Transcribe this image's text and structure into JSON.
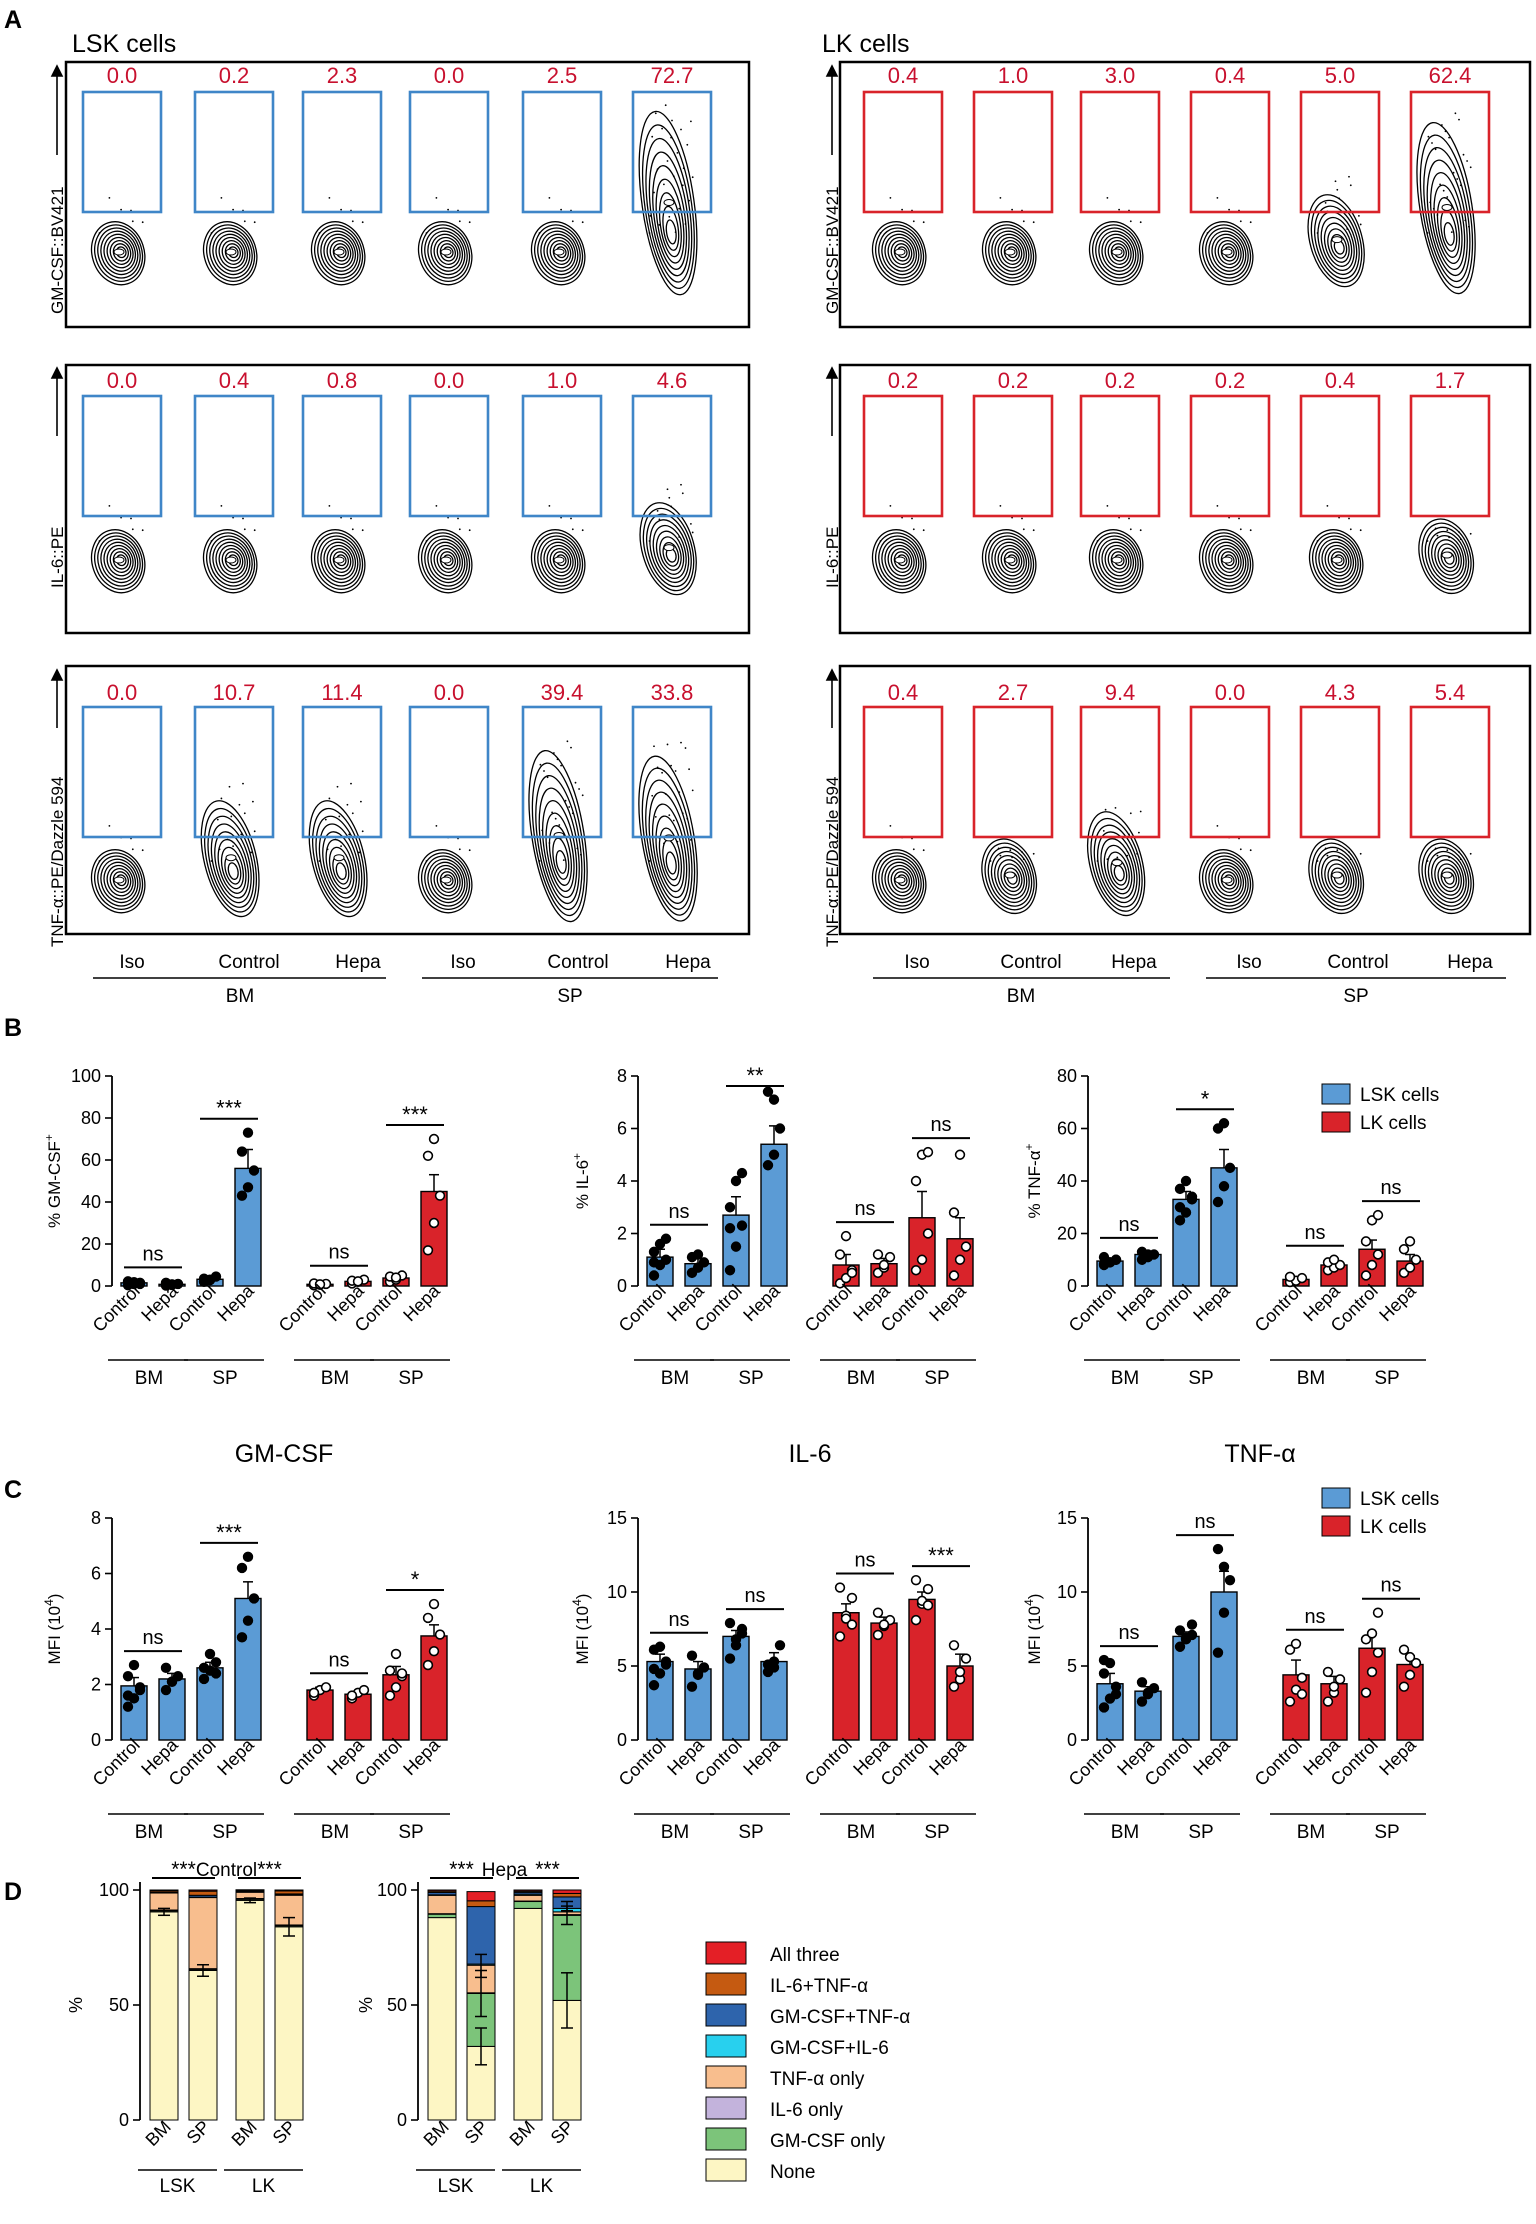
{
  "colors": {
    "lsk": "#5b9bd5",
    "lk": "#d9232a",
    "gate_lsk": "#3f86c8",
    "gate_lk": "#d9232a",
    "freq": "#c8102e"
  },
  "panel_letters": [
    "A",
    "B",
    "C",
    "D"
  ],
  "panelA": {
    "lsk_title": "LSK cells",
    "lk_title": "LK cells",
    "row_axis_labels": [
      "GM-CSF::BV421",
      "IL-6::PE",
      "TNF-α::PE/Dazzle 594"
    ],
    "column_labels": [
      "Iso",
      "Control",
      "Hepa",
      "Iso",
      "Control",
      "Hepa"
    ],
    "group_labels": [
      "BM",
      "SP"
    ],
    "lsk_gate_values": [
      [
        "0.0",
        "0.2",
        "2.3",
        "0.0",
        "2.5",
        "72.7"
      ],
      [
        "0.0",
        "0.4",
        "0.8",
        "0.0",
        "1.0",
        "4.6"
      ],
      [
        "0.0",
        "10.7",
        "11.4",
        "0.0",
        "39.4",
        "33.8"
      ]
    ],
    "lk_gate_values": [
      [
        "0.4",
        "1.0",
        "3.0",
        "0.4",
        "5.0",
        "62.4"
      ],
      [
        "0.2",
        "0.2",
        "0.2",
        "0.2",
        "0.4",
        "1.7"
      ],
      [
        "0.4",
        "2.7",
        "9.4",
        "0.0",
        "4.3",
        "5.4"
      ]
    ]
  },
  "legend": {
    "lsk": "LSK cells",
    "lk": "LK cells"
  },
  "chart_data": [
    {
      "id": "B1",
      "type": "bar",
      "ylabel": "% GM-CSF",
      "ylabel_sup": "+",
      "ylim": [
        0,
        100
      ],
      "yticks": [
        0,
        20,
        40,
        60,
        80,
        100
      ],
      "categories": [
        "Control",
        "Hepa",
        "Control",
        "Hepa",
        "Control",
        "Hepa",
        "Control",
        "Hepa"
      ],
      "cell_types": [
        "LSK",
        "LSK",
        "LSK",
        "LSK",
        "LK",
        "LK",
        "LK",
        "LK"
      ],
      "values": [
        1.5,
        0.8,
        3.2,
        56,
        0.8,
        2.2,
        3.8,
        45
      ],
      "errors": [
        0.5,
        0.4,
        0.8,
        9,
        0.4,
        0.6,
        1,
        8
      ],
      "points": [
        [
          0.4,
          1,
          1.5,
          2.2,
          1.8,
          1
        ],
        [
          0.2,
          0.5,
          1,
          1.5,
          0.8
        ],
        [
          2,
          3,
          4.5,
          3.5,
          2.8
        ],
        [
          43,
          47,
          55,
          64,
          73
        ],
        [
          0.3,
          0.6,
          1,
          1.2,
          0.8
        ],
        [
          1.2,
          2,
          3,
          2.5,
          2.2
        ],
        [
          2,
          3,
          5,
          4.5,
          4
        ],
        [
          17,
          30,
          43,
          62,
          70
        ]
      ],
      "groups": [
        "BM",
        "SP",
        "BM",
        "SP"
      ],
      "comparisons": [
        [
          "ns",
          0,
          1
        ],
        [
          "***",
          2,
          3
        ],
        [
          "ns",
          4,
          5
        ],
        [
          "***",
          6,
          7
        ]
      ]
    },
    {
      "id": "B2",
      "type": "bar",
      "ylabel": "% IL-6",
      "ylabel_sup": "+",
      "ylim": [
        0,
        8
      ],
      "yticks": [
        0,
        2,
        4,
        6,
        8
      ],
      "categories": [
        "Control",
        "Hepa",
        "Control",
        "Hepa",
        "Control",
        "Hepa",
        "Control",
        "Hepa"
      ],
      "cell_types": [
        "LSK",
        "LSK",
        "LSK",
        "LSK",
        "LK",
        "LK",
        "LK",
        "LK"
      ],
      "values": [
        1.1,
        0.85,
        2.7,
        5.4,
        0.8,
        0.85,
        2.6,
        1.8
      ],
      "errors": [
        0.3,
        0.2,
        0.7,
        0.7,
        0.4,
        0.2,
        1.0,
        0.8
      ],
      "points": [
        [
          0.4,
          0.8,
          1,
          1.3,
          1.6,
          1.8,
          0.9
        ],
        [
          0.5,
          0.7,
          0.9,
          1.1,
          1.2
        ],
        [
          0.6,
          1.5,
          2.3,
          3,
          4,
          4.3,
          2.2
        ],
        [
          4.6,
          5,
          6,
          7.4,
          7.1
        ],
        [
          0.1,
          0.3,
          0.6,
          1.2,
          1.9,
          0.5
        ],
        [
          0.5,
          0.7,
          1.1,
          1.2,
          0.8
        ],
        [
          0.6,
          1,
          2,
          4,
          5,
          5.1
        ],
        [
          0.4,
          1,
          1.5,
          2.8,
          5
        ]
      ],
      "groups": [
        "BM",
        "SP",
        "BM",
        "SP"
      ],
      "comparisons": [
        [
          "ns",
          0,
          1
        ],
        [
          "**",
          2,
          3
        ],
        [
          "ns",
          4,
          5
        ],
        [
          "ns",
          6,
          7
        ]
      ]
    },
    {
      "id": "B3",
      "type": "bar",
      "ylabel": "% TNF-α",
      "ylabel_sup": "+",
      "ylim": [
        0,
        80
      ],
      "yticks": [
        0,
        20,
        40,
        60,
        80
      ],
      "categories": [
        "Control",
        "Hepa",
        "Control",
        "Hepa",
        "Control",
        "Hepa",
        "Control",
        "Hepa"
      ],
      "cell_types": [
        "LSK",
        "LSK",
        "LSK",
        "LSK",
        "LK",
        "LK",
        "LK",
        "LK"
      ],
      "values": [
        9.5,
        12,
        33,
        45,
        2.5,
        8,
        14,
        9.5
      ],
      "errors": [
        1,
        0.8,
        3,
        7,
        0.7,
        1.2,
        3.5,
        2.5
      ],
      "points": [
        [
          8,
          9,
          10,
          11,
          9,
          10,
          8.5
        ],
        [
          10,
          11,
          12,
          13,
          12
        ],
        [
          25,
          28,
          33,
          37,
          40,
          34,
          30
        ],
        [
          32,
          38,
          45,
          60,
          62
        ],
        [
          1.5,
          2,
          3,
          3.5
        ],
        [
          6,
          7,
          8,
          9,
          10
        ],
        [
          4,
          8,
          12,
          17,
          25,
          27
        ],
        [
          5,
          7,
          10,
          14,
          17
        ]
      ],
      "groups": [
        "BM",
        "SP",
        "BM",
        "SP"
      ],
      "comparisons": [
        [
          "ns",
          0,
          1
        ],
        [
          "*",
          2,
          3
        ],
        [
          "ns",
          4,
          5
        ],
        [
          "ns",
          6,
          7
        ]
      ]
    },
    {
      "id": "C1",
      "type": "bar",
      "title": "GM-CSF",
      "ylabel": "MFI (10",
      "ylabel_sup": "4",
      "ylabel_end": ")",
      "ylim": [
        0,
        8
      ],
      "yticks": [
        0,
        2,
        4,
        6,
        8
      ],
      "categories": [
        "Control",
        "Hepa",
        "Control",
        "Hepa",
        "Control",
        "Hepa",
        "Control",
        "Hepa"
      ],
      "cell_types": [
        "LSK",
        "LSK",
        "LSK",
        "LSK",
        "LK",
        "LK",
        "LK",
        "LK"
      ],
      "values": [
        1.95,
        2.2,
        2.6,
        5.1,
        1.8,
        1.65,
        2.35,
        3.75
      ],
      "errors": [
        0.3,
        0.2,
        0.2,
        0.6,
        0.1,
        0.1,
        0.3,
        0.4
      ],
      "points": [
        [
          1.2,
          1.5,
          1.9,
          2.3,
          2.7,
          1.8,
          1.6
        ],
        [
          1.8,
          2.1,
          2.3,
          2.6,
          2.1
        ],
        [
          2.2,
          2.5,
          2.8,
          2.6,
          3.1,
          2.4
        ],
        [
          3.7,
          4.3,
          5.1,
          6.2,
          6.6
        ],
        [
          1.6,
          1.8,
          1.9,
          1.7
        ],
        [
          1.5,
          1.7,
          1.8,
          1.6
        ],
        [
          1.6,
          1.9,
          2.3,
          2.5,
          3.1,
          2.4
        ],
        [
          2.7,
          3.2,
          3.8,
          4.4,
          4.9
        ]
      ],
      "groups": [
        "BM",
        "SP",
        "BM",
        "SP"
      ],
      "comparisons": [
        [
          "ns",
          0,
          1
        ],
        [
          "***",
          2,
          3
        ],
        [
          "ns",
          4,
          5
        ],
        [
          "*",
          6,
          7
        ]
      ]
    },
    {
      "id": "C2",
      "type": "bar",
      "title": "IL-6",
      "ylabel": "MFI (10",
      "ylabel_sup": "4",
      "ylabel_end": ")",
      "ylim": [
        0,
        15
      ],
      "yticks": [
        0,
        5,
        10,
        15
      ],
      "categories": [
        "Control",
        "Hepa",
        "Control",
        "Hepa",
        "Control",
        "Hepa",
        "Control",
        "Hepa"
      ],
      "cell_types": [
        "LSK",
        "LSK",
        "LSK",
        "LSK",
        "LK",
        "LK",
        "LK",
        "LK"
      ],
      "values": [
        5.3,
        4.8,
        7.0,
        5.3,
        8.6,
        7.9,
        9.5,
        5.0
      ],
      "errors": [
        0.5,
        0.5,
        0.4,
        0.6,
        0.6,
        0.4,
        0.5,
        0.8
      ],
      "points": [
        [
          3.7,
          4.5,
          5.3,
          6.1,
          6.3,
          5.1,
          4.8
        ],
        [
          3.6,
          4.5,
          4.9,
          5.7,
          4.4
        ],
        [
          5.5,
          6.4,
          7.2,
          7.9,
          6.8,
          7.5
        ],
        [
          4.6,
          5.3,
          6.4,
          5.1,
          4.9
        ],
        [
          7,
          8.4,
          9.6,
          10.3,
          8.2,
          7.8
        ],
        [
          7.1,
          7.7,
          8.1,
          8.6,
          7.8
        ],
        [
          8.1,
          9.2,
          10.2,
          10.8,
          9.4,
          9.1
        ],
        [
          3.6,
          4.1,
          5.5,
          6.4,
          4.6
        ]
      ],
      "groups": [
        "BM",
        "SP",
        "BM",
        "SP"
      ],
      "comparisons": [
        [
          "ns",
          0,
          1
        ],
        [
          "ns",
          2,
          3
        ],
        [
          "ns",
          4,
          5
        ],
        [
          "***",
          6,
          7
        ]
      ]
    },
    {
      "id": "C3",
      "type": "bar",
      "title": "TNF-α",
      "ylabel": "MFI (10",
      "ylabel_sup": "4",
      "ylabel_end": ")",
      "ylim": [
        0,
        15
      ],
      "yticks": [
        0,
        5,
        10,
        15
      ],
      "categories": [
        "Control",
        "Hepa",
        "Control",
        "Hepa",
        "Control",
        "Hepa",
        "Control",
        "Hepa"
      ],
      "cell_types": [
        "LSK",
        "LSK",
        "LSK",
        "LSK",
        "LK",
        "LK",
        "LK",
        "LK"
      ],
      "values": [
        3.8,
        3.3,
        7.0,
        10.0,
        4.4,
        3.8,
        6.2,
        5.1
      ],
      "errors": [
        0.7,
        0.3,
        0.3,
        1.4,
        1.0,
        0.5,
        1.0,
        0.6
      ],
      "points": [
        [
          2.2,
          2.8,
          3.6,
          4.5,
          5.2,
          3.1,
          5.4
        ],
        [
          2.6,
          3.1,
          3.5,
          3.9,
          3.2
        ],
        [
          6.3,
          6.8,
          7.1,
          7.4,
          6.9,
          7.8
        ],
        [
          5.9,
          8.6,
          10.8,
          12.9,
          11.7
        ],
        [
          2.6,
          3.4,
          4.2,
          6.1,
          6.5,
          3.1
        ],
        [
          2.6,
          3.2,
          4.1,
          4.6,
          3.6
        ],
        [
          3.2,
          4.6,
          5.9,
          6.8,
          7.2,
          8.6
        ],
        [
          3.6,
          4.4,
          5.2,
          6.1,
          5.6
        ]
      ],
      "groups": [
        "BM",
        "SP",
        "BM",
        "SP"
      ],
      "comparisons": [
        [
          "ns",
          0,
          1
        ],
        [
          "ns",
          2,
          3
        ],
        [
          "ns",
          4,
          5
        ],
        [
          "ns",
          6,
          7
        ]
      ]
    },
    {
      "id": "D1",
      "type": "stacked-bar",
      "title": "Control",
      "ylabel": "%",
      "ylim": [
        0,
        100
      ],
      "yticks": [
        0,
        50,
        100
      ],
      "categories": [
        "BM",
        "SP",
        "BM",
        "SP"
      ],
      "groups": [
        "LSK",
        "LK"
      ],
      "series": [
        {
          "name": "None",
          "values": [
            90.5,
            65,
            95.5,
            84
          ]
        },
        {
          "name": "GM-CSF only",
          "values": [
            0.5,
            0.5,
            0.5,
            0.5
          ]
        },
        {
          "name": "IL-6 only",
          "values": [
            0.3,
            0.3,
            0.3,
            0.3
          ]
        },
        {
          "name": "TNF-α only",
          "values": [
            7.5,
            31,
            2.8,
            13
          ]
        },
        {
          "name": "GM-CSF+IL-6",
          "values": [
            0.1,
            0.1,
            0.1,
            0.1
          ]
        },
        {
          "name": "GM-CSF+TNF-α",
          "values": [
            0.3,
            0.8,
            0.3,
            0.4
          ]
        },
        {
          "name": "IL-6+TNF-α",
          "values": [
            0.6,
            1.8,
            0.4,
            1.3
          ]
        },
        {
          "name": "All three",
          "values": [
            0.2,
            0.5,
            0.2,
            0.4
          ]
        }
      ],
      "errors": [
        [
          90.5,
          1.5
        ],
        [
          65,
          2.5
        ],
        [
          95.5,
          1
        ],
        [
          84,
          4
        ]
      ],
      "comparisons": [
        [
          "***",
          0,
          1
        ],
        [
          "***",
          2,
          3
        ]
      ]
    },
    {
      "id": "D2",
      "type": "stacked-bar",
      "title": "Hepa",
      "ylabel": "%",
      "ylim": [
        0,
        100
      ],
      "yticks": [
        0,
        50,
        100
      ],
      "categories": [
        "BM",
        "SP",
        "BM",
        "SP"
      ],
      "groups": [
        "LSK",
        "LK"
      ],
      "series": [
        {
          "name": "None",
          "values": [
            88,
            32,
            92,
            52
          ]
        },
        {
          "name": "GM-CSF only",
          "values": [
            1.5,
            23,
            3,
            37
          ]
        },
        {
          "name": "IL-6 only",
          "values": [
            0.2,
            0.3,
            0.2,
            0.3
          ]
        },
        {
          "name": "TNF-α only",
          "values": [
            8,
            12,
            2.5,
            1.2
          ]
        },
        {
          "name": "GM-CSF+IL-6",
          "values": [
            0.2,
            0.5,
            0.5,
            1.5
          ]
        },
        {
          "name": "GM-CSF+TNF-α",
          "values": [
            1,
            25,
            0.8,
            5
          ]
        },
        {
          "name": "IL-6+TNF-α",
          "values": [
            0.6,
            2.5,
            0.5,
            1.5
          ]
        },
        {
          "name": "All three",
          "values": [
            0.5,
            4,
            0.5,
            1.5
          ]
        }
      ],
      "errors": [
        [
          32,
          8
        ],
        [
          52,
          12
        ],
        [
          55,
          10
        ],
        [
          89,
          4
        ],
        [
          67,
          5
        ],
        [
          93,
          2
        ]
      ],
      "comparisons": [
        [
          "***",
          0,
          1
        ],
        [
          "***",
          2,
          3
        ]
      ]
    }
  ],
  "legendD": [
    {
      "name": "All three",
      "color": "#e41f26"
    },
    {
      "name": "IL-6+TNF-α",
      "color": "#c55a11"
    },
    {
      "name": "GM-CSF+TNF-α",
      "color": "#2e64ac"
    },
    {
      "name": "GM-CSF+IL-6",
      "color": "#28d0ee"
    },
    {
      "name": "TNF-α only",
      "color": "#f8be8e"
    },
    {
      "name": "IL-6 only",
      "color": "#c3b3dc"
    },
    {
      "name": "GM-CSF only",
      "color": "#7cc47a"
    },
    {
      "name": "None",
      "color": "#fdf6c4"
    }
  ]
}
